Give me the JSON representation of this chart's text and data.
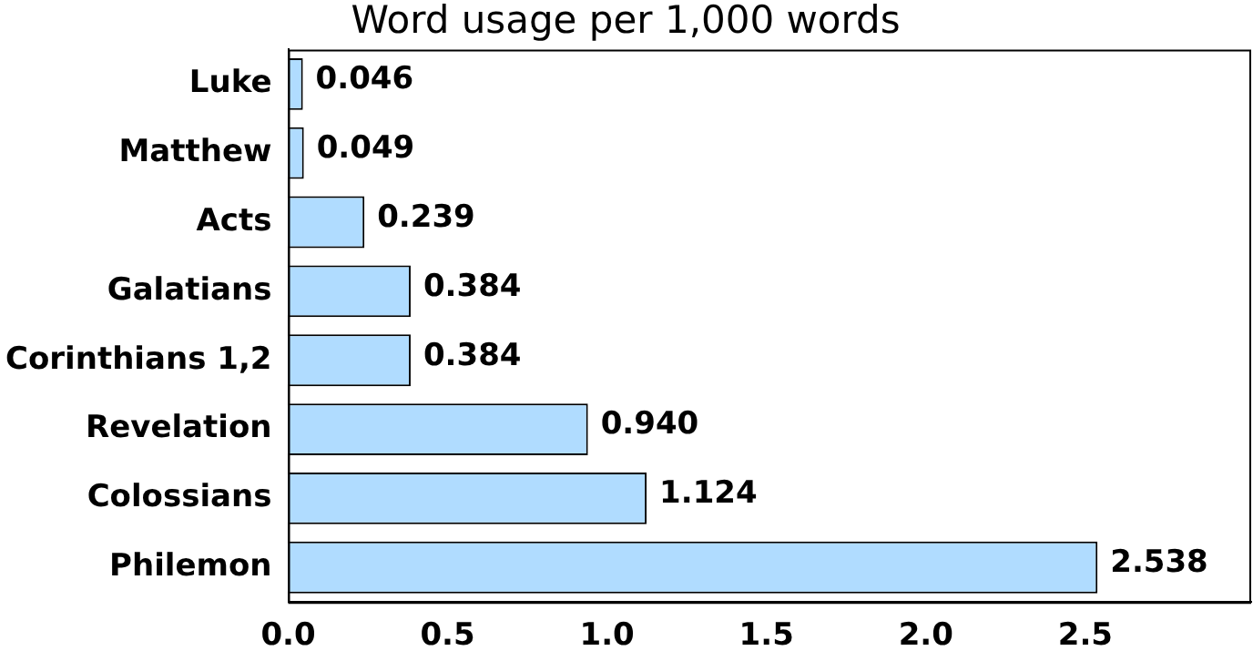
{
  "chart_data": {
    "type": "bar",
    "orientation": "horizontal",
    "title": "Word usage per 1,000 words",
    "categories": [
      "Luke",
      "Matthew",
      "Acts",
      "Galatians",
      "Corinthians 1,2",
      "Revelation",
      "Colossians",
      "Philemon"
    ],
    "values": [
      0.046,
      0.049,
      0.239,
      0.384,
      0.384,
      0.94,
      1.124,
      2.538
    ],
    "value_labels": [
      "0.046",
      "0.049",
      "0.239",
      "0.384",
      "0.384",
      "0.940",
      "1.124",
      "2.538"
    ],
    "color": "#b0dcff",
    "xlim": [
      0,
      3.02
    ],
    "xticks": [
      {
        "value": 0,
        "label": "0.0"
      },
      {
        "value": 0.5,
        "label": "0.5"
      },
      {
        "value": 1,
        "label": "1.0"
      },
      {
        "value": 1.5,
        "label": "1.5"
      },
      {
        "value": 2,
        "label": "2.0"
      },
      {
        "value": 2.5,
        "label": "2.5"
      }
    ],
    "grid": false,
    "legend": false
  }
}
